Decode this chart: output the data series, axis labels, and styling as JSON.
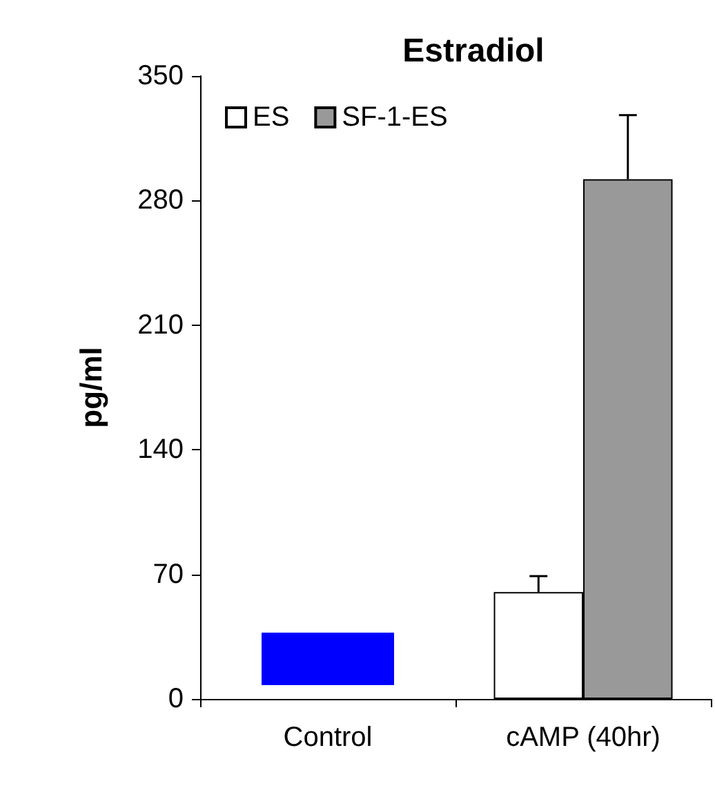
{
  "chart_data": {
    "type": "bar",
    "title": "Estradiol",
    "ylabel": "pg/ml",
    "categories": [
      "Control",
      "cAMP (40hr)"
    ],
    "series": [
      {
        "name": "ES",
        "color": "#ffffff",
        "values": [
          null,
          60
        ],
        "errors": [
          null,
          9
        ]
      },
      {
        "name": "SF-1-ES",
        "color": "#999999",
        "values": [
          null,
          292
        ],
        "errors": [
          null,
          36
        ]
      }
    ],
    "ylim": [
      0,
      350
    ],
    "yticks": [
      0,
      70,
      140,
      210,
      280,
      350
    ],
    "grid": false,
    "legend": "top left"
  }
}
